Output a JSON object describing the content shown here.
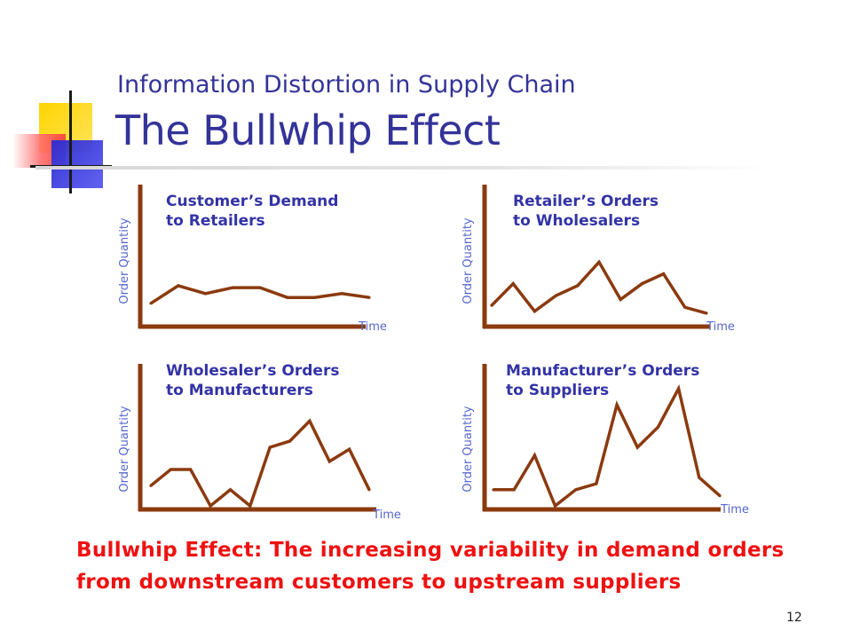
{
  "slide": {
    "title_line1": "Information Distortion in Supply Chain",
    "title_line2": "The Bullwhip Effect",
    "caption": "Bullwhip Effect: The increasing variability in demand orders from downstream customers to upstream suppliers",
    "page_number": "12"
  },
  "colors": {
    "title": "#333399",
    "chart_title": "#3333a6",
    "axis": "#8b3a0f",
    "line": "#8b3a0f",
    "axis_label": "#5566cc",
    "caption": "#ee1111"
  },
  "chart_data": [
    {
      "type": "line",
      "title_lines": [
        "Customer’s  Demand",
        "to Retailers"
      ],
      "xlabel": "Time",
      "ylabel": "Order Quantity",
      "x": [
        0,
        1,
        2,
        3,
        4,
        5,
        6,
        7,
        8
      ],
      "y": [
        1.0,
        1.9,
        1.5,
        1.8,
        1.8,
        1.3,
        1.3,
        1.5,
        1.3
      ],
      "ylim": [
        0,
        6.5
      ],
      "grid": false,
      "ticks": false
    },
    {
      "type": "line",
      "title_lines": [
        "Retailer’s  Orders",
        "to Wholesalers"
      ],
      "xlabel": "Time",
      "ylabel": "Order Quantity",
      "x": [
        0,
        1,
        2,
        3,
        4,
        5,
        6,
        7,
        8,
        9,
        10
      ],
      "y": [
        0.9,
        2.0,
        0.6,
        1.4,
        1.9,
        3.1,
        1.2,
        2.0,
        2.5,
        0.8,
        0.5
      ],
      "ylim": [
        0,
        6.5
      ],
      "grid": false,
      "ticks": false
    },
    {
      "type": "line",
      "title_lines": [
        "Wholesaler’s Orders",
        "to Manufacturers"
      ],
      "xlabel": "Time",
      "ylabel": "Order Quantity",
      "x": [
        0,
        1,
        2,
        3,
        4,
        5,
        6,
        7,
        8,
        9,
        10,
        11
      ],
      "y": [
        1.0,
        1.8,
        1.8,
        0.0,
        0.8,
        0.0,
        2.9,
        3.2,
        4.2,
        2.2,
        2.8,
        0.8
      ],
      "ylim": [
        0,
        6.5
      ],
      "grid": false,
      "ticks": false
    },
    {
      "type": "line",
      "title_lines": [
        "Manufacturer’s Orders",
        "to Suppliers"
      ],
      "xlabel": "Time",
      "ylabel": "Order Quantity",
      "x": [
        0,
        1,
        2,
        3,
        4,
        5,
        6,
        7,
        8,
        9,
        10,
        11
      ],
      "y": [
        0.8,
        0.8,
        2.5,
        0.0,
        0.8,
        1.1,
        5.0,
        2.9,
        3.9,
        5.8,
        1.4,
        0.5
      ],
      "ylim": [
        0,
        6.5
      ],
      "grid": false,
      "ticks": false
    }
  ]
}
